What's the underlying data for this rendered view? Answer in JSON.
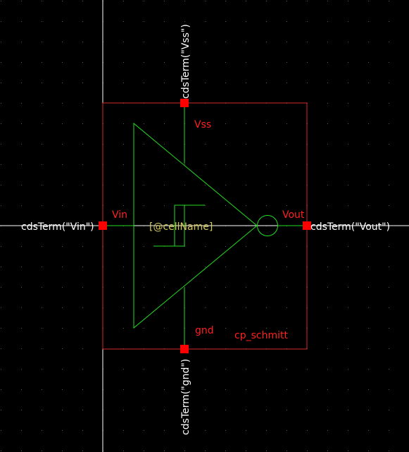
{
  "colors": {
    "background": "#000000",
    "grid_dot": "#5a5a5a",
    "axis": "#ffffff",
    "bbox": "#d22a2a",
    "wire": "#22dd22",
    "pin": "#ff0000",
    "pin_label": "#ff2020",
    "term_label": "#ffffff",
    "cell_name": "#d6c95a"
  },
  "pins": {
    "top": {
      "name": "Vss",
      "term": "cdsTerm(\"Vss\")"
    },
    "left": {
      "name": "Vin",
      "term": "cdsTerm(\"Vin\")"
    },
    "right": {
      "name": "Vout",
      "term": "cdsTerm(\"Vout\")"
    },
    "bottom": {
      "name": "gnd",
      "term": "cdsTerm(\"gnd\")"
    }
  },
  "cell": {
    "name_placeholder": "[@cellName]",
    "instance_label": "cp_schmitt"
  },
  "icons": {
    "body": "triangle-buffer-icon",
    "inverter_bubble": "inversion-bubble-icon",
    "hysteresis": "schmitt-hysteresis-icon"
  }
}
